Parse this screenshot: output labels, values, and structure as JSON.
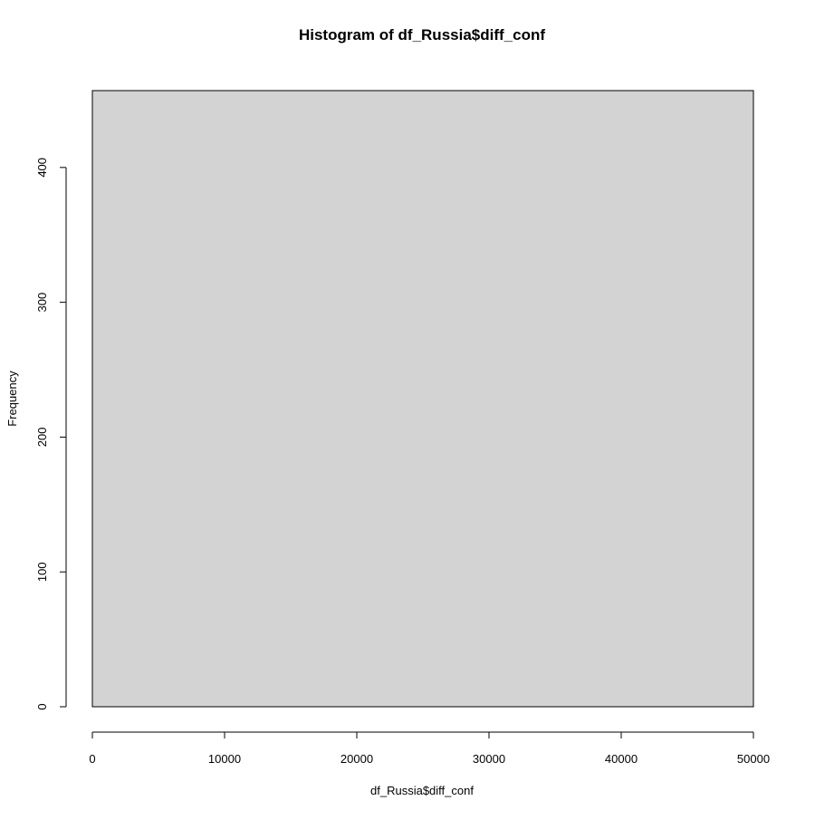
{
  "chart_data": {
    "type": "bar",
    "title": "Histogram of df_Russia$diff_conf",
    "xlabel": "df_Russia$diff_conf",
    "ylabel": "Frequency",
    "bins": [
      {
        "start": 0,
        "end": 50000,
        "count": 457
      }
    ],
    "xlim": [
      0,
      50000
    ],
    "ylim": [
      0,
      457
    ],
    "x_ticks": [
      0,
      10000,
      20000,
      30000,
      40000,
      50000
    ],
    "y_ticks": [
      0,
      100,
      200,
      300,
      400
    ],
    "x_tick_labels": [
      "0",
      "10000",
      "20000",
      "30000",
      "40000",
      "50000"
    ],
    "y_tick_labels": [
      "0",
      "100",
      "200",
      "300",
      "400"
    ],
    "grid": false,
    "legend": "none",
    "colors": {
      "bar_fill": "#d3d3d3",
      "bar_stroke": "#000000",
      "axis": "#000000"
    }
  }
}
